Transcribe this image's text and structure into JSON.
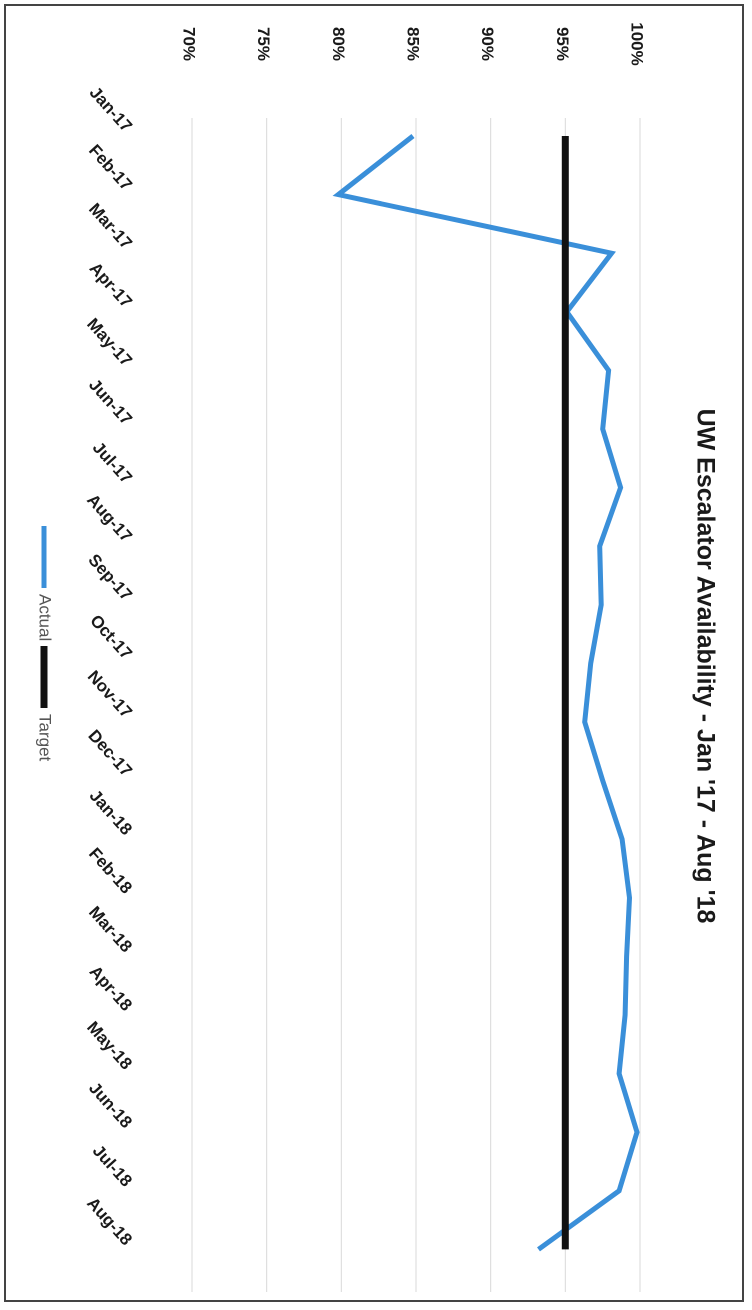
{
  "chart_data": {
    "type": "line",
    "title": "UW Escalator Availability - Jan '17 - Aug '18",
    "xlabel": "",
    "ylabel": "",
    "categories": [
      "Jan-17",
      "Feb-17",
      "Mar-17",
      "Apr-17",
      "May-17",
      "Jun-17",
      "Jul-17",
      "Aug-17",
      "Sep-17",
      "Oct-17",
      "Nov-17",
      "Dec-17",
      "Jan-18",
      "Feb-18",
      "Mar-18",
      "Apr-18",
      "May-18",
      "Jun-18",
      "Jul-18",
      "Aug-18"
    ],
    "y_ticks": [
      "70%",
      "75%",
      "80%",
      "85%",
      "90%",
      "95%",
      "100%"
    ],
    "ylim": [
      70,
      100
    ],
    "grid": true,
    "legend_position": "bottom",
    "series": [
      {
        "name": "Actual",
        "color": "#3a8fd9",
        "values": [
          84.8,
          79.8,
          98.1,
          95.1,
          97.9,
          97.5,
          98.7,
          97.3,
          97.4,
          96.7,
          96.3,
          97.5,
          98.8,
          99.3,
          99.1,
          99.0,
          98.6,
          99.8,
          98.6,
          93.2
        ]
      },
      {
        "name": "Target",
        "color": "#111111",
        "values": [
          95,
          95,
          95,
          95,
          95,
          95,
          95,
          95,
          95,
          95,
          95,
          95,
          95,
          95,
          95,
          95,
          95,
          95,
          95,
          95
        ]
      }
    ]
  }
}
